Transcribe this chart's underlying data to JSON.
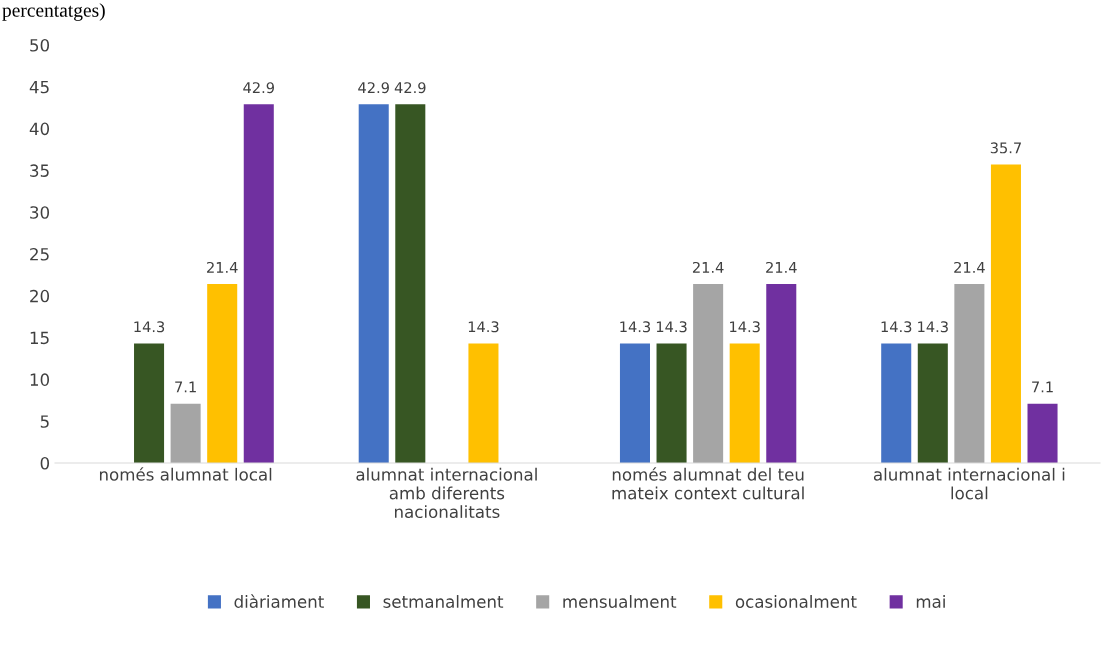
{
  "chart_data": {
    "type": "bar",
    "title": "percentatges)",
    "categories": [
      "només alumnat local",
      "alumnat internacional amb diferents nacionalitats",
      "només alumnat del teu mateix context cultural",
      "alumnat internacional i local"
    ],
    "series": [
      {
        "name": "diàriament",
        "color": "#4472c4",
        "values": [
          null,
          42.9,
          14.3,
          14.3
        ]
      },
      {
        "name": "setmanalment",
        "color": "#375623",
        "values": [
          14.3,
          42.9,
          14.3,
          14.3
        ]
      },
      {
        "name": "mensualment",
        "color": "#a5a5a5",
        "values": [
          7.1,
          null,
          21.4,
          21.4
        ]
      },
      {
        "name": "ocasionalment",
        "color": "#ffc000",
        "values": [
          21.4,
          14.3,
          14.3,
          35.7
        ]
      },
      {
        "name": "mai",
        "color": "#7030a0",
        "values": [
          42.9,
          null,
          21.4,
          7.1
        ]
      }
    ],
    "ylim": [
      0,
      50
    ],
    "yticks": [
      0,
      5,
      10,
      15,
      20,
      25,
      30,
      35,
      40,
      45,
      50
    ],
    "grid": false,
    "legend": "bottom",
    "data_labels": true
  }
}
